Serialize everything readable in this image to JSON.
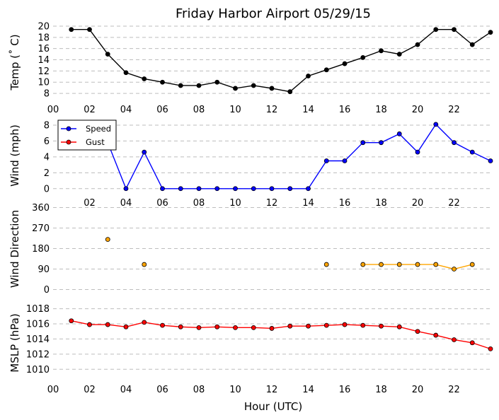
{
  "figure": {
    "title": "Friday Harbor Airport 05/29/15",
    "xlabel": "Hour (UTC)"
  },
  "chart_data": [
    {
      "type": "line",
      "id": "temp",
      "ylabel": "Temp (˚ C)",
      "ylim": [
        7,
        20.5
      ],
      "yticks": [
        "20",
        "18",
        "16",
        "14",
        "12",
        "10",
        "8"
      ],
      "xticks": [
        "00",
        "02",
        "04",
        "06",
        "08",
        "10",
        "12",
        "14",
        "16",
        "18",
        "20",
        "22"
      ],
      "grid": true,
      "series": [
        {
          "color": "#000000",
          "x": [
            1,
            2,
            3,
            4,
            5,
            6,
            7,
            8,
            9,
            10,
            11,
            12,
            13,
            14,
            15,
            16,
            17,
            18,
            19,
            20,
            21,
            22,
            23,
            24
          ],
          "values": [
            19.4,
            19.4,
            15.0,
            11.7,
            10.6,
            10.0,
            9.4,
            9.4,
            10.0,
            8.9,
            9.4,
            8.9,
            8.3,
            11.1,
            12.2,
            13.3,
            14.4,
            15.6,
            15.0,
            16.7,
            19.4,
            19.4,
            16.7,
            18.9
          ]
        }
      ]
    },
    {
      "type": "line",
      "id": "wind",
      "ylabel": "Wind (mph)",
      "ylim": [
        -1,
        8.8
      ],
      "yticks": [
        "8",
        "6",
        "4",
        "2",
        "0"
      ],
      "xticks": [],
      "grid": true,
      "legend": "top-left",
      "series": [
        {
          "name": "Speed",
          "color": "#0000ff",
          "x": [
            1,
            2,
            3,
            4,
            5,
            6,
            7,
            8,
            9,
            10,
            11,
            12,
            13,
            14,
            15,
            16,
            17,
            18,
            19,
            20,
            21,
            22,
            23,
            24
          ],
          "values": [
            5.8,
            5.8,
            5.8,
            0,
            4.6,
            0,
            0,
            0,
            0,
            0,
            0,
            0,
            0,
            0,
            3.5,
            3.5,
            5.8,
            5.8,
            6.9,
            4.6,
            8.1,
            5.8,
            4.6,
            3.5
          ]
        },
        {
          "name": "Gust",
          "color": "#ff0000",
          "x": [],
          "values": []
        }
      ]
    },
    {
      "type": "scatter",
      "id": "direction",
      "ylabel": "Wind Direction",
      "ylim": [
        -20,
        380
      ],
      "yticks": [
        "360",
        "270",
        "180",
        "90",
        "0"
      ],
      "xticks": [
        "02",
        "04",
        "06",
        "08",
        "10",
        "12",
        "14",
        "16",
        "18",
        "20",
        "22"
      ],
      "grid": true,
      "series": [
        {
          "color": "#ffa500",
          "x": [
            3,
            5,
            15,
            17,
            18,
            19,
            20,
            21,
            22,
            23
          ],
          "values": [
            220,
            110,
            110,
            110,
            110,
            110,
            110,
            110,
            90,
            110
          ],
          "connect_from_index": 3
        }
      ]
    },
    {
      "type": "line",
      "id": "pressure",
      "ylabel": "MSLP (hPa)",
      "ylim": [
        1009,
        1018.8
      ],
      "yticks": [
        "1018",
        "1016",
        "1014",
        "1012",
        "1010"
      ],
      "xticks": [
        "00",
        "02",
        "04",
        "06",
        "08",
        "10",
        "12",
        "14",
        "16",
        "18",
        "20",
        "22"
      ],
      "grid": true,
      "series": [
        {
          "color": "#ff0000",
          "x": [
            1,
            2,
            3,
            4,
            5,
            6,
            7,
            8,
            9,
            10,
            11,
            12,
            13,
            14,
            15,
            16,
            17,
            18,
            19,
            20,
            21,
            22,
            23,
            24
          ],
          "values": [
            1016.4,
            1015.9,
            1015.9,
            1015.6,
            1016.2,
            1015.8,
            1015.6,
            1015.5,
            1015.6,
            1015.5,
            1015.5,
            1015.4,
            1015.7,
            1015.7,
            1015.8,
            1015.9,
            1015.8,
            1015.7,
            1015.6,
            1015.0,
            1014.5,
            1013.9,
            1013.5,
            1012.7
          ]
        }
      ]
    }
  ]
}
